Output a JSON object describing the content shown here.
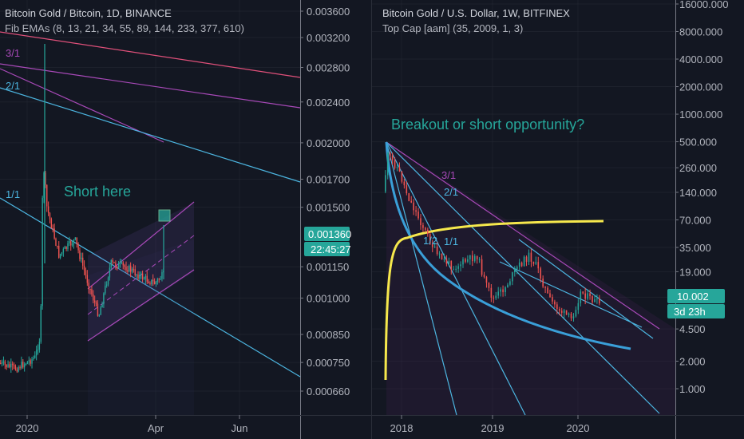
{
  "theme": {
    "bg": "#131722",
    "up": "#26a69a",
    "down": "#ef5350",
    "grid": "#2a2e39",
    "axis_line": "#787b86",
    "tag_color": "#26a69a",
    "cap_color": "#f6e84c"
  },
  "chart_data": [
    {
      "type": "candlestick",
      "title": "Bitcoin Gold / Bitcoin, 1D, BINANCE",
      "subtitle": "Fib EMAs (8, 13, 21, 34, 55, 89, 144, 233, 377, 610)",
      "y_scale": "log",
      "ylim": [
        0.00062,
        0.0039
      ],
      "y_ticks": [
        "0.003600",
        "0.003200",
        "0.002800",
        "0.002400",
        "0.002000",
        "0.001700",
        "0.001500",
        "0.001150",
        "0.001000",
        "0.000850",
        "0.000750",
        "0.000660"
      ],
      "x_ticks": [
        "2020",
        "Apr",
        "Jun"
      ],
      "price_tag": "0.001360",
      "countdown_tag": "22:45:27",
      "annotation": "Short here",
      "fib_labels": [
        "3/1",
        "2/1",
        "1/1"
      ]
    },
    {
      "type": "candlestick",
      "title": "Bitcoin Gold / U.S. Dollar, 1W, BITFINEX",
      "subtitle": "Top Cap [aam] (35, 2009, 1, 3)",
      "y_scale": "log",
      "ylim": [
        0.75,
        17000
      ],
      "y_ticks": [
        "16000.000",
        "8000.000",
        "4000.000",
        "2000.000",
        "1000.000",
        "500.000",
        "260.000",
        "140.000",
        "70.000",
        "35.000",
        "19.000",
        "10.002",
        "4.500",
        "2.000",
        "1.000"
      ],
      "x_ticks": [
        "2018",
        "2019",
        "2020"
      ],
      "price_tag": "10.002",
      "countdown_tag": "3d 23h",
      "annotation": "Breakout or short opportunity?",
      "fib_labels": [
        "3/1",
        "2/1",
        "1/1",
        "1/2"
      ]
    }
  ]
}
